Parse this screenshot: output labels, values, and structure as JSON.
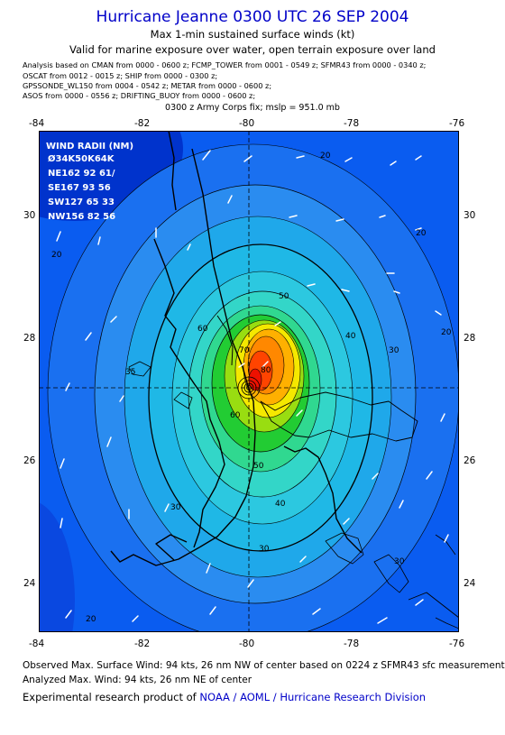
{
  "title": "Hurricane Jeanne 0300 UTC 26 SEP 2004",
  "subtitle1": "Max 1-min sustained surface winds (kt)",
  "subtitle2": "Valid for marine exposure over water, open terrain exposure over land",
  "sources": [
    "Analysis based on  CMAN from 0000 - 0600 z;  FCMP_TOWER from 0001 - 0549 z;  SFMR43 from 0000 - 0340 z;",
    "OSCAT from 0012 - 0015 z;  SHIP from 0000 - 0300 z;",
    "GPSSONDE_WL150 from 0004 - 0542 z;  METAR from 0000 - 0600 z;",
    "ASOS from 0000 - 0556 z;  DRIFTING_BUOY from 0000 - 0600 z;"
  ],
  "fix_note": "0300 z Army Corps fix; mslp = 951.0 mb",
  "map": {
    "lon_ticks": [
      "-84",
      "-82",
      "-80",
      "-78",
      "-76"
    ],
    "lat_ticks": [
      "30",
      "28",
      "26",
      "24"
    ],
    "center_lon": -80,
    "center_lat": 27.2,
    "contour_labels": [
      "20",
      "20",
      "20",
      "20",
      "20",
      "30",
      "30",
      "30",
      "30",
      "35",
      "40",
      "40",
      "50",
      "50",
      "60",
      "60",
      "70",
      "80"
    ],
    "colors": {
      "ocean_dark": "#0033cc",
      "blue": "#0a5cf0",
      "light_blue": "#2a8cf0",
      "cyan": "#1fb6e8",
      "aqua": "#33ccdd",
      "green": "#22cc33",
      "yellow": "#f5e800",
      "orange": "#ff8800",
      "red": "#ee1100"
    }
  },
  "wind_radii": {
    "title": "WIND RADII (NM)",
    "header": "Ø34K50K64K",
    "rows": [
      "NE162  92  61/",
      "SE167  93  56",
      "SW127  65  33",
      "NW156  82  56"
    ]
  },
  "footer": {
    "observed": "Observed Max. Surface Wind: 94 kts, 26 nm NW of center based on 0224 z SFMR43 sfc measurement",
    "analyzed": "Analyzed Max. Wind: 94 kts, 26 nm NE of center",
    "credit_prefix": "Experimental research product of ",
    "credit_link": "NOAA / AOML / Hurricane Research Division"
  }
}
